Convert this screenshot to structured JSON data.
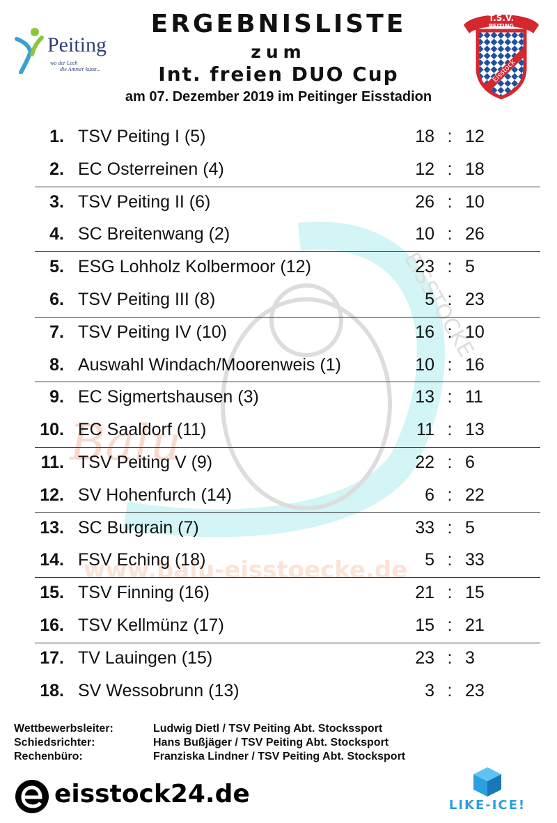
{
  "header": {
    "title": "ERGEBNISLISTE",
    "line2": "zum",
    "line3": "Int. freien DUO Cup",
    "line4": "am 07. Dezember 2019 im Peitinger Eisstadion"
  },
  "logos": {
    "peiting": {
      "word": "Peiting",
      "slogan_1": "wo der Lech",
      "slogan_2": "die Ammer küsst...",
      "color": "#2c3e7a"
    },
    "tsv": {
      "top": "T.S.V.",
      "bottom": "PEITING",
      "badge": "Eisstock",
      "red": "#d6262e",
      "blue": "#1f4fa0"
    }
  },
  "watermark": {
    "arc": "EISSTOCKE",
    "script": "Balu",
    "url": "www.balu-eisstoecke.de"
  },
  "results": [
    {
      "rank": "1.",
      "team": "TSV Peiting I (5)",
      "score_for": "18",
      "score_against": "12"
    },
    {
      "rank": "2.",
      "team": "EC Osterreinen (4)",
      "score_for": "12",
      "score_against": "18"
    },
    {
      "rank": "3.",
      "team": "TSV Peiting II (6)",
      "score_for": "26",
      "score_against": "10"
    },
    {
      "rank": "4.",
      "team": "SC Breitenwang (2)",
      "score_for": "10",
      "score_against": "26"
    },
    {
      "rank": "5.",
      "team": "ESG Lohholz Kolbermoor (12)",
      "score_for": "23",
      "score_against": "5"
    },
    {
      "rank": "6.",
      "team": "TSV Peiting III (8)",
      "score_for": "5",
      "score_against": "23"
    },
    {
      "rank": "7.",
      "team": "TSV Peiting IV (10)",
      "score_for": "16",
      "score_against": "10"
    },
    {
      "rank": "8.",
      "team": "Auswahl Windach/Moorenweis (1)",
      "score_for": "10",
      "score_against": "16"
    },
    {
      "rank": "9.",
      "team": "EC Sigmertshausen (3)",
      "score_for": "13",
      "score_against": "11"
    },
    {
      "rank": "10.",
      "team": "EC Saaldorf (11)",
      "score_for": "11",
      "score_against": "13"
    },
    {
      "rank": "11.",
      "team": "TSV Peiting V (9)",
      "score_for": "22",
      "score_against": "6"
    },
    {
      "rank": "12.",
      "team": "SV Hohenfurch (14)",
      "score_for": "6",
      "score_against": "22"
    },
    {
      "rank": "13.",
      "team": "SC Burgrain (7)",
      "score_for": "33",
      "score_against": "5"
    },
    {
      "rank": "14.",
      "team": "FSV Eching (18)",
      "score_for": "5",
      "score_against": "33"
    },
    {
      "rank": "15.",
      "team": "TSV Finning (16)",
      "score_for": "21",
      "score_against": "15"
    },
    {
      "rank": "16.",
      "team": "TSV Kellmünz (17)",
      "score_for": "15",
      "score_against": "21"
    },
    {
      "rank": "17.",
      "team": "TV Lauingen (15)",
      "score_for": "23",
      "score_against": "3"
    },
    {
      "rank": "18.",
      "team": "SV Wessobrunn (13)",
      "score_for": "3",
      "score_against": "23"
    }
  ],
  "score_separator": ":",
  "officials": [
    {
      "role": "Wettbewerbsleiter:",
      "name": "Ludwig Dietl / TSV Peiting Abt. Stockssport"
    },
    {
      "role": "Schiedsrichter:",
      "name": "Hans Bußjäger / TSV Peiting Abt. Stocksport"
    },
    {
      "role": "Rechenbüro:",
      "name": "Franziska Lindner / TSV Peiting Abt. Stocksport"
    }
  ],
  "sponsors": {
    "eisstock24": "eisstock24.de",
    "likeice": "LIKE-ICE!"
  }
}
